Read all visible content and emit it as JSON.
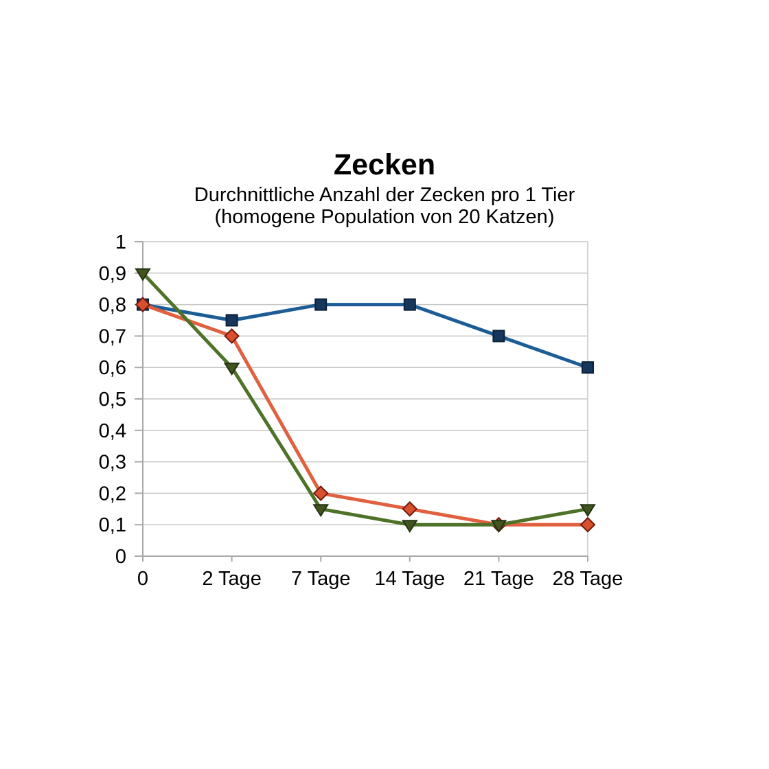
{
  "page": {
    "background": "#ffffff"
  },
  "chart_data": {
    "type": "line",
    "title": "Zecken",
    "subtitle_lines": [
      "Durchnittliche Anzahl der Zecken pro 1 Tier",
      "(homogene Population von 20 Katzen)"
    ],
    "categories": [
      "0",
      "2 Tage",
      "7 Tage",
      "14 Tage",
      "21 Tage",
      "28 Tage"
    ],
    "series": [
      {
        "name": "blue-squares",
        "marker": "square",
        "line_color": "#1d5d95",
        "marker_fill": "#16365c",
        "marker_stroke": "#0b1f3a",
        "values": [
          0.8,
          0.75,
          0.8,
          0.8,
          0.7,
          0.6
        ]
      },
      {
        "name": "red-diamonds",
        "marker": "diamond",
        "line_color": "#e0603f",
        "marker_fill": "#d9502e",
        "marker_stroke": "#6e1a0d",
        "values": [
          0.8,
          0.7,
          0.2,
          0.15,
          0.1,
          0.1
        ]
      },
      {
        "name": "green-triangles",
        "marker": "triangle-down",
        "line_color": "#4e7228",
        "marker_fill": "#44541f",
        "marker_stroke": "#233311",
        "values": [
          0.9,
          0.6,
          0.15,
          0.1,
          0.1,
          0.15
        ]
      }
    ],
    "y_axis": {
      "min": 0,
      "max": 1,
      "step": 0.1,
      "tick_labels": [
        "0",
        "0,1",
        "0,2",
        "0,3",
        "0,4",
        "0,5",
        "0,6",
        "0,7",
        "0,8",
        "0,9",
        "1"
      ]
    },
    "x_axis": {
      "label_suffix_shown_on_ticks": true
    },
    "grid": "horizontal",
    "legend": "none",
    "colors": {
      "gridline": "#c6c6c6",
      "axis": "#a9a9a9",
      "text": "#000000"
    }
  }
}
